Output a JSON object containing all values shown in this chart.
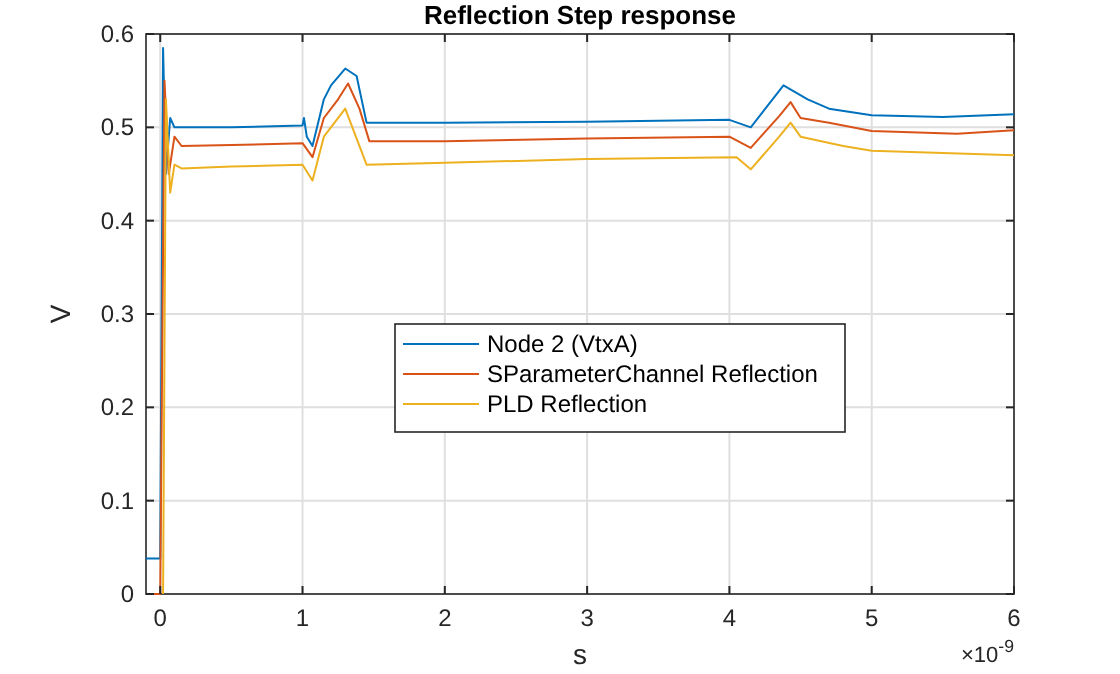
{
  "chart_data": {
    "type": "line",
    "title": "Reflection Step response",
    "xlabel": "s",
    "ylabel": "V",
    "annotations": [
      "×10$^{-9}$"
    ],
    "xlim": [
      -0.1,
      6
    ],
    "xticks": [
      0,
      1,
      2,
      3,
      4,
      5,
      6
    ],
    "ylim": [
      0,
      0.6
    ],
    "yticks": [
      0,
      0.1,
      0.2,
      0.3,
      0.4,
      0.5,
      0.6
    ],
    "grid": true,
    "legend": "center",
    "line_style": "solid",
    "marker": "none",
    "series": [
      {
        "name": "Node 2 (VtxA)",
        "color": "#0072bd",
        "x": [
          -0.1,
          0,
          0.02,
          0.04,
          0.07,
          0.1,
          0.5,
          1.0,
          1.01,
          1.03,
          1.07,
          1.15,
          1.2,
          1.3,
          1.38,
          1.45,
          2,
          3,
          4.0,
          4.15,
          4.38,
          4.55,
          4.7,
          5,
          5.5,
          6
        ],
        "values": [
          0.038,
          0.038,
          0.585,
          0.45,
          0.51,
          0.5,
          0.5,
          0.502,
          0.51,
          0.49,
          0.48,
          0.53,
          0.545,
          0.563,
          0.555,
          0.505,
          0.505,
          0.506,
          0.508,
          0.5,
          0.545,
          0.53,
          0.52,
          0.513,
          0.511,
          0.514
        ]
      },
      {
        "name": "SParameterChannel Reflection",
        "color": "#d95319",
        "x": [
          -0.1,
          0,
          0.03,
          0.06,
          0.1,
          0.15,
          0.5,
          1.0,
          1.07,
          1.15,
          1.25,
          1.32,
          1.4,
          1.47,
          2,
          3,
          4.0,
          4.15,
          4.35,
          4.43,
          4.5,
          4.7,
          5,
          5.6,
          6
        ],
        "values": [
          0,
          0,
          0.55,
          0.45,
          0.49,
          0.48,
          0.481,
          0.483,
          0.468,
          0.51,
          0.53,
          0.547,
          0.52,
          0.485,
          0.485,
          0.488,
          0.49,
          0.478,
          0.512,
          0.527,
          0.51,
          0.505,
          0.496,
          0.493,
          0.497
        ]
      },
      {
        "name": "PLD Reflection",
        "color": "#edb120",
        "x": [
          0.02,
          0.04,
          0.07,
          0.1,
          0.15,
          0.5,
          1.0,
          1.07,
          1.15,
          1.3,
          1.45,
          2,
          3,
          4.05,
          4.15,
          4.35,
          4.43,
          4.5,
          4.8,
          5,
          6
        ],
        "values": [
          0,
          0.53,
          0.43,
          0.46,
          0.456,
          0.458,
          0.46,
          0.443,
          0.49,
          0.52,
          0.46,
          0.462,
          0.466,
          0.468,
          0.455,
          0.49,
          0.505,
          0.49,
          0.48,
          0.475,
          0.47
        ]
      }
    ]
  }
}
